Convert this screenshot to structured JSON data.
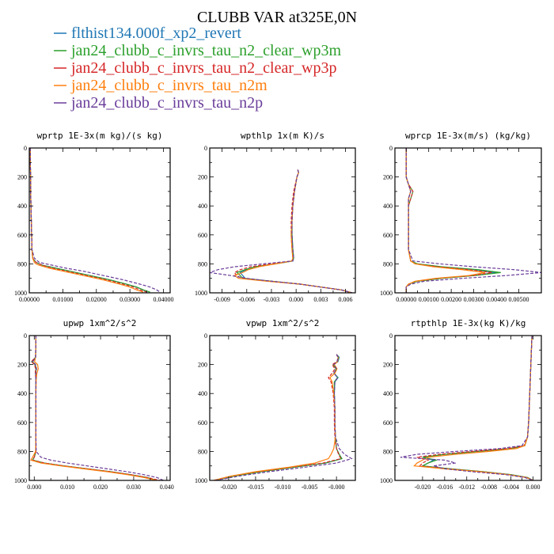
{
  "figure": {
    "title": "CLUBB VAR at325E,0N",
    "legend": [
      {
        "label": "flthist134.000f_xp2_revert",
        "color": "#1f77b4",
        "dash": "solid"
      },
      {
        "label": "jan24_clubb_c_invrs_tau_n2_clear_wp3m",
        "color": "#2ca02c",
        "dash": "solid"
      },
      {
        "label": "jan24_clubb_c_invrs_tau_n2_clear_wp3p",
        "color": "#d62728",
        "dash": "dashed"
      },
      {
        "label": "jan24_clubb_c_invrs_tau_n2m",
        "color": "#ff7f0e",
        "dash": "solid"
      },
      {
        "label": "jan24_clubb_c_invrs_tau_n2p",
        "color": "#6a3d9a",
        "dash": "dashed"
      }
    ]
  },
  "chart_data": [
    {
      "type": "line",
      "title": "wprtp  1E-3x(m kg)/(s kg)",
      "xlim": [
        0,
        0.042
      ],
      "xticks": [
        0,
        0.01,
        0.02,
        0.03,
        0.04
      ],
      "xtick_labels": [
        "0.00000",
        "0.01000",
        "0.02000",
        "0.03000",
        "0.04000"
      ],
      "ylim": [
        1000,
        0
      ],
      "yticks": [
        0,
        200,
        400,
        600,
        800,
        1000
      ],
      "y": [
        0,
        100,
        200,
        300,
        400,
        500,
        600,
        700,
        760,
        790,
        800,
        810,
        830,
        850,
        880,
        910,
        940,
        960,
        980,
        995
      ],
      "series": [
        {
          "x": [
            0.0003,
            0.0003,
            0.0004,
            0.0004,
            0.0005,
            0.0006,
            0.0007,
            0.0008,
            0.001,
            0.002,
            0.003,
            0.004,
            0.008,
            0.012,
            0.018,
            0.024,
            0.029,
            0.032,
            0.034,
            0.035
          ]
        },
        {
          "x": [
            0.0003,
            0.0003,
            0.0004,
            0.0004,
            0.0005,
            0.0006,
            0.0007,
            0.0008,
            0.001,
            0.002,
            0.003,
            0.004,
            0.008,
            0.012,
            0.018,
            0.024,
            0.029,
            0.032,
            0.034,
            0.036
          ]
        },
        {
          "x": [
            0.0003,
            0.0003,
            0.0004,
            0.0004,
            0.0005,
            0.0006,
            0.0007,
            0.0008,
            0.001,
            0.002,
            0.003,
            0.004,
            0.007,
            0.011,
            0.017,
            0.023,
            0.028,
            0.031,
            0.033,
            0.035
          ]
        },
        {
          "x": [
            0.0003,
            0.0003,
            0.0004,
            0.0004,
            0.0005,
            0.0006,
            0.0007,
            0.0008,
            0.001,
            0.0015,
            0.002,
            0.003,
            0.006,
            0.01,
            0.016,
            0.022,
            0.027,
            0.03,
            0.032,
            0.034
          ]
        },
        {
          "x": [
            0.0003,
            0.0003,
            0.0004,
            0.0004,
            0.0005,
            0.0006,
            0.0007,
            0.0008,
            0.0015,
            0.003,
            0.005,
            0.007,
            0.011,
            0.016,
            0.022,
            0.028,
            0.033,
            0.036,
            0.038,
            0.039
          ]
        }
      ]
    },
    {
      "type": "line",
      "title": "wpthlp  1x(m K)/s",
      "xlim": [
        -0.0105,
        0.0072
      ],
      "xticks": [
        -0.009,
        -0.006,
        -0.003,
        0,
        0.003,
        0.006
      ],
      "xtick_labels": [
        "-0.009",
        "-0.006",
        "-0.003",
        "0.000",
        "0.003",
        "0.006"
      ],
      "ylim": [
        1000,
        0
      ],
      "yticks": [
        0,
        200,
        400,
        600,
        800,
        1000
      ],
      "y": [
        150,
        170,
        200,
        300,
        400,
        500,
        600,
        700,
        760,
        780,
        800,
        820,
        840,
        860,
        880,
        900,
        920,
        940,
        960,
        980,
        1000
      ],
      "series": [
        {
          "x": [
            0.0002,
            0.0003,
            0.0001,
            -0.0002,
            -0.0004,
            -0.0005,
            -0.0005,
            -0.0004,
            -0.0003,
            -0.0004,
            -0.0025,
            -0.005,
            -0.006,
            -0.0068,
            -0.0065,
            -0.0062,
            -0.003,
            0.0005,
            0.003,
            0.0055,
            0.0068
          ]
        },
        {
          "x": [
            0.0002,
            0.0003,
            0.0001,
            -0.0002,
            -0.0004,
            -0.0005,
            -0.0005,
            -0.0004,
            -0.0003,
            -0.0004,
            -0.0025,
            -0.005,
            -0.0062,
            -0.0072,
            -0.0068,
            -0.0065,
            -0.003,
            0.0005,
            0.003,
            0.0055,
            0.0068
          ]
        },
        {
          "x": [
            0.0002,
            0.0003,
            0.0001,
            -0.0003,
            -0.0005,
            -0.0006,
            -0.0006,
            -0.0005,
            -0.0004,
            -0.0005,
            -0.003,
            -0.0055,
            -0.0068,
            -0.0075,
            -0.0072,
            -0.0066,
            -0.003,
            0.0005,
            0.003,
            0.0055,
            0.0068
          ]
        },
        {
          "x": [
            0.0002,
            0.0003,
            0.0001,
            -0.0002,
            -0.0004,
            -0.0005,
            -0.0006,
            -0.0005,
            -0.0004,
            -0.0005,
            -0.0025,
            -0.0045,
            -0.0058,
            -0.0065,
            -0.0075,
            -0.007,
            -0.0035,
            0.0005,
            0.003,
            0.0055,
            0.0068
          ]
        },
        {
          "x": [
            0.0002,
            0.0003,
            0.0001,
            -0.0002,
            -0.0004,
            -0.0005,
            -0.0005,
            -0.0004,
            -0.0003,
            -0.0004,
            -0.004,
            -0.0075,
            -0.0095,
            -0.0105,
            -0.008,
            -0.006,
            -0.003,
            0.0005,
            0.003,
            0.0055,
            0.0068
          ]
        }
      ]
    },
    {
      "type": "line",
      "title": "wprcp  1E-3x(m/s) (kg/kg)",
      "xlim": [
        -0.0005,
        0.006
      ],
      "xticks": [
        0,
        0.001,
        0.002,
        0.003,
        0.004,
        0.005
      ],
      "xtick_labels": [
        "0.00000",
        "0.00100",
        "0.00200",
        "0.00300",
        "0.00400",
        "0.00500"
      ],
      "ylim": [
        1000,
        0
      ],
      "yticks": [
        0,
        200,
        400,
        600,
        800,
        1000
      ],
      "y": [
        0,
        200,
        250,
        300,
        350,
        400,
        500,
        600,
        700,
        780,
        800,
        820,
        840,
        860,
        880,
        900,
        920,
        940,
        960,
        980,
        1000
      ],
      "series": [
        {
          "x": [
            0,
            0,
            0.0001,
            0.0002,
            0.0001,
            0.0001,
            0.0001,
            0.0001,
            0.0001,
            0.0002,
            0.0005,
            0.0015,
            0.003,
            0.004,
            0.003,
            0.0015,
            0.0005,
            0.0001,
            0,
            0,
            0
          ]
        },
        {
          "x": [
            0,
            0,
            0.0001,
            0.0003,
            0.0002,
            0.0001,
            0.0001,
            0.0001,
            0.0001,
            0.0002,
            0.0005,
            0.0016,
            0.0032,
            0.0042,
            0.0031,
            0.0016,
            0.0005,
            0.0001,
            0,
            0,
            0
          ]
        },
        {
          "x": [
            0,
            0,
            0.0001,
            0.0003,
            0.0002,
            0.0001,
            0.0001,
            0.0001,
            0.0001,
            0.0002,
            0.0004,
            0.0014,
            0.0028,
            0.0038,
            0.003,
            0.0014,
            0.0004,
            0.0001,
            0,
            0,
            0
          ]
        },
        {
          "x": [
            0,
            0,
            0.0001,
            0.0002,
            0.0001,
            0.0001,
            0.0001,
            0.0001,
            0.0001,
            0.0002,
            0.0004,
            0.0012,
            0.0025,
            0.0035,
            0.0028,
            0.0013,
            0.0004,
            0.0001,
            0,
            0,
            0
          ]
        },
        {
          "x": [
            0,
            0,
            0.0001,
            0.0002,
            0.0001,
            0.0001,
            0.0001,
            0.0001,
            0.0001,
            0.0003,
            0.0015,
            0.003,
            0.0048,
            0.006,
            0.0045,
            0.0025,
            0.0008,
            0.0002,
            0,
            0,
            0
          ]
        }
      ]
    },
    {
      "type": "line",
      "title": "upwp  1xm^2/s^2",
      "xlim": [
        -0.0015,
        0.041
      ],
      "xticks": [
        0,
        0.01,
        0.02,
        0.03,
        0.04
      ],
      "xtick_labels": [
        "0.000",
        "0.010",
        "0.020",
        "0.030",
        "0.040"
      ],
      "ylim": [
        1000,
        0
      ],
      "yticks": [
        0,
        200,
        400,
        600,
        800,
        1000
      ],
      "y": [
        0,
        150,
        180,
        200,
        230,
        260,
        300,
        400,
        500,
        600,
        700,
        800,
        840,
        860,
        880,
        900,
        920,
        940,
        960,
        980,
        1000
      ],
      "series": [
        {
          "x": [
            0.0005,
            0.0004,
            -0.0008,
            0.0002,
            0.0005,
            0.0004,
            0.0005,
            0.0005,
            0.0005,
            0.0005,
            0.0005,
            0.0005,
            0,
            -0.0005,
            0.003,
            0.009,
            0.016,
            0.023,
            0.029,
            0.034,
            0.037
          ]
        },
        {
          "x": [
            0.0005,
            0.0004,
            -0.0006,
            0.0003,
            0.0006,
            0.0004,
            0.0005,
            0.0005,
            0.0005,
            0.0005,
            0.0005,
            0.0005,
            0,
            -0.0005,
            0.003,
            0.009,
            0.016,
            0.023,
            0.029,
            0.034,
            0.037
          ]
        },
        {
          "x": [
            0.0005,
            0.0004,
            -0.0009,
            0.0001,
            0.0004,
            0.0003,
            0.0005,
            0.0005,
            0.0005,
            0.0005,
            0.0005,
            0.0005,
            0,
            -0.0005,
            0.003,
            0.009,
            0.016,
            0.023,
            0.029,
            0.034,
            0.038
          ]
        },
        {
          "x": [
            0.0005,
            0.0004,
            0.0001,
            0.001,
            0.0012,
            0.0008,
            0.0006,
            0.0005,
            0.0005,
            0.0005,
            0.0005,
            0.0004,
            -0.0005,
            -0.001,
            0.002,
            0.008,
            0.015,
            0.022,
            0.028,
            0.033,
            0.037
          ]
        },
        {
          "x": [
            0.0005,
            0.0004,
            -0.0004,
            0.0004,
            0.0007,
            0.0005,
            0.0005,
            0.0005,
            0.0005,
            0.0005,
            0.0005,
            0.0006,
            0.002,
            0.005,
            0.01,
            0.016,
            0.022,
            0.028,
            0.033,
            0.037,
            0.039
          ]
        }
      ]
    },
    {
      "type": "line",
      "title": "vpwp  1xm^2/s^2",
      "xlim": [
        -0.0235,
        0.0035
      ],
      "xticks": [
        -0.02,
        -0.015,
        -0.01,
        -0.005,
        0
      ],
      "xtick_labels": [
        "-0.020",
        "-0.015",
        "-0.010",
        "-0.005",
        "-0.000"
      ],
      "ylim": [
        1000,
        0
      ],
      "yticks": [
        0,
        200,
        400,
        600,
        800,
        1000
      ],
      "y": [
        130,
        150,
        180,
        200,
        230,
        260,
        290,
        320,
        400,
        500,
        600,
        700,
        780,
        820,
        850,
        880,
        910,
        940,
        970,
        1000
      ],
      "series": [
        {
          "x": [
            0,
            0.0005,
            0.0003,
            -0.0005,
            0,
            -0.0005,
            0.0003,
            -0.0003,
            -0.0004,
            -0.0003,
            -0.0003,
            -0.0002,
            0,
            0.0005,
            0.001,
            -0.002,
            -0.008,
            -0.014,
            -0.019,
            -0.0225
          ]
        },
        {
          "x": [
            0,
            0.0004,
            0.0002,
            -0.0006,
            -0.0001,
            -0.0004,
            0.0002,
            -0.0004,
            -0.0004,
            -0.0003,
            -0.0003,
            -0.0002,
            0,
            0.0005,
            0.001,
            -0.002,
            -0.008,
            -0.014,
            -0.019,
            -0.0225
          ]
        },
        {
          "x": [
            0,
            0.0003,
            0.0001,
            -0.0008,
            -0.0003,
            -0.0008,
            -0.0015,
            -0.001,
            -0.0006,
            -0.0004,
            -0.0004,
            -0.0003,
            0,
            0.0004,
            0.0008,
            -0.0025,
            -0.0085,
            -0.0145,
            -0.0195,
            -0.0228
          ]
        },
        {
          "x": [
            0,
            0.0003,
            0.0002,
            -0.0004,
            0.0001,
            -0.0003,
            -0.0012,
            -0.0008,
            -0.0005,
            -0.0003,
            -0.0003,
            -0.0002,
            -0.0005,
            -0.001,
            -0.0015,
            -0.004,
            -0.009,
            -0.015,
            -0.0195,
            -0.0228
          ]
        },
        {
          "x": [
            0,
            0.0003,
            0.0001,
            -0.0005,
            0,
            -0.0005,
            0.0002,
            -0.0003,
            -0.0004,
            -0.0003,
            -0.0003,
            -0.0002,
            0.0005,
            0.0015,
            0.0028,
            0,
            -0.006,
            -0.0125,
            -0.018,
            -0.0225
          ]
        }
      ]
    },
    {
      "type": "line",
      "title": "rtpthlp  1E-3x(kg K)/kg",
      "xlim": [
        -0.025,
        0.0015
      ],
      "xticks": [
        -0.02,
        -0.016,
        -0.012,
        -0.008,
        -0.004,
        0
      ],
      "xtick_labels": [
        "-0.020",
        "-0.016",
        "-0.012",
        "-0.008",
        "-0.004",
        "0.000"
      ],
      "ylim": [
        1000,
        0
      ],
      "yticks": [
        0,
        200,
        400,
        600,
        800,
        1000
      ],
      "y": [
        0,
        100,
        200,
        300,
        400,
        500,
        600,
        700,
        760,
        780,
        800,
        820,
        840,
        860,
        880,
        900,
        920,
        940,
        960,
        980,
        1000
      ],
      "series": [
        {
          "x": [
            -0.0002,
            -0.0003,
            -0.0004,
            -0.0005,
            -0.0006,
            -0.0007,
            -0.0008,
            -0.001,
            -0.0015,
            -0.004,
            -0.01,
            -0.016,
            -0.02,
            -0.018,
            -0.019,
            -0.02,
            -0.015,
            -0.009,
            -0.004,
            -0.001,
            0
          ]
        },
        {
          "x": [
            -0.0002,
            -0.0003,
            -0.0004,
            -0.0005,
            -0.0006,
            -0.0007,
            -0.0008,
            -0.001,
            -0.0015,
            -0.004,
            -0.01,
            -0.016,
            -0.02,
            -0.0175,
            -0.019,
            -0.02,
            -0.015,
            -0.009,
            -0.004,
            -0.001,
            0
          ]
        },
        {
          "x": [
            -0.0002,
            -0.0003,
            -0.0004,
            -0.0005,
            -0.0006,
            -0.0007,
            -0.0008,
            -0.001,
            -0.0016,
            -0.0045,
            -0.011,
            -0.017,
            -0.021,
            -0.019,
            -0.02,
            -0.0205,
            -0.0155,
            -0.0095,
            -0.0045,
            -0.0012,
            0
          ]
        },
        {
          "x": [
            -0.0002,
            -0.0003,
            -0.0004,
            -0.0005,
            -0.0006,
            -0.0007,
            -0.0008,
            -0.001,
            -0.0015,
            -0.003,
            -0.008,
            -0.014,
            -0.019,
            -0.02,
            -0.021,
            -0.0215,
            -0.016,
            -0.0095,
            -0.0045,
            -0.0012,
            0
          ]
        },
        {
          "x": [
            -0.0002,
            -0.0003,
            -0.0004,
            -0.0005,
            -0.0006,
            -0.0007,
            -0.0008,
            -0.001,
            -0.002,
            -0.006,
            -0.014,
            -0.021,
            -0.024,
            -0.016,
            -0.014,
            -0.018,
            -0.016,
            -0.011,
            -0.005,
            -0.0015,
            0
          ]
        }
      ]
    }
  ]
}
